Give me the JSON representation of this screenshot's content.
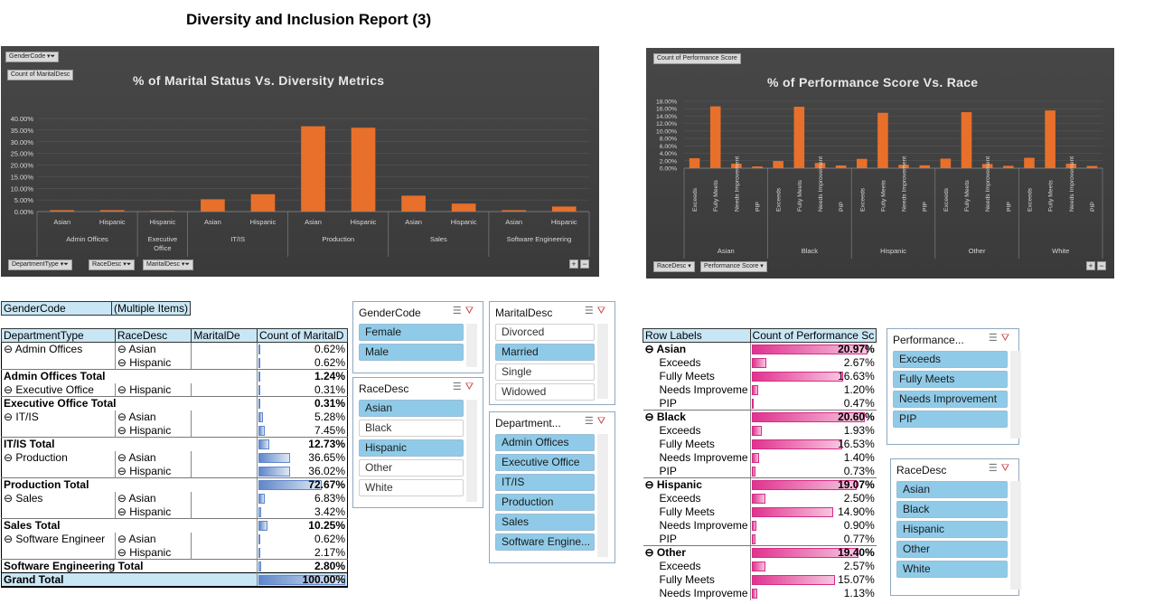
{
  "report_title": "Diversity and Inclusion Report (3)",
  "chart1": {
    "filter_gender": "GenderCode",
    "field_value": "Count of MaritalDesc",
    "title": "% of Marital Status Vs. Diversity Metrics",
    "footer_buttons": [
      "DepartmentType",
      "RaceDesc",
      "MaritalDesc"
    ],
    "y_ticks": [
      "40.00%",
      "35.00%",
      "30.00%",
      "25.00%",
      "20.00%",
      "15.00%",
      "10.00%",
      "5.00%",
      "0.00%"
    ],
    "groups": [
      "Admin Offices",
      "Executive Office",
      "IT/IS",
      "Production",
      "Sales",
      "Software Engineering"
    ]
  },
  "chart2": {
    "field_value": "Count of Performance Score",
    "title": "% of Performance Score Vs. Race",
    "footer_buttons": [
      "RaceDesc",
      "Performance Score"
    ],
    "y_ticks": [
      "18.00%",
      "16.00%",
      "14.00%",
      "12.00%",
      "10.00%",
      "8.00%",
      "6.00%",
      "4.00%",
      "2.00%",
      "0.00%"
    ],
    "groups": [
      "Asian",
      "Black",
      "Hispanic",
      "Other",
      "White"
    ],
    "sub_labels": [
      "Exceeds",
      "Fully Meets",
      "Needs Improvement",
      "PIP"
    ]
  },
  "chart_data": [
    {
      "type": "bar",
      "title": "% of Marital Status Vs. Diversity Metrics",
      "ylim": [
        0,
        40
      ],
      "categories": [
        "Admin Offices / Asian",
        "Admin Offices / Hispanic",
        "Executive Office / Hispanic",
        "IT/IS / Asian",
        "IT/IS / Hispanic",
        "Production / Asian",
        "Production / Hispanic",
        "Sales / Asian",
        "Sales / Hispanic",
        "Software Engineering / Asian",
        "Software Engineering / Hispanic"
      ],
      "labels": [
        "Asian",
        "Hispanic",
        "Hispanic",
        "Asian",
        "Hispanic",
        "Asian",
        "Hispanic",
        "Asian",
        "Hispanic",
        "Asian",
        "Hispanic"
      ],
      "values": [
        0.62,
        0.62,
        0.31,
        5.28,
        7.45,
        36.65,
        36.02,
        6.83,
        3.42,
        0.62,
        2.17
      ]
    },
    {
      "type": "bar",
      "title": "% of Performance Score Vs. Race",
      "ylim": [
        0,
        18
      ],
      "categories": [
        "Asian / Exceeds",
        "Asian / Fully Meets",
        "Asian / Needs Improvement",
        "Asian / PIP",
        "Black / Exceeds",
        "Black / Fully Meets",
        "Black / Needs Improvement",
        "Black / PIP",
        "Hispanic / Exceeds",
        "Hispanic / Fully Meets",
        "Hispanic / Needs Improvement",
        "Hispanic / PIP",
        "Other / Exceeds",
        "Other / Fully Meets",
        "Other / Needs Improvement",
        "Other / PIP",
        "White / Exceeds",
        "White / Fully Meets",
        "White / Needs Improvement",
        "White / PIP"
      ],
      "values": [
        2.67,
        16.63,
        1.2,
        0.47,
        1.93,
        16.53,
        1.4,
        0.73,
        2.5,
        14.9,
        0.9,
        0.77,
        2.57,
        15.07,
        1.13,
        0.63,
        2.8,
        15.53,
        1.2,
        0.6
      ]
    }
  ],
  "pivot1": {
    "filter_label": "GenderCode",
    "filter_value": "(Multiple Items)",
    "headers": [
      "DepartmentType",
      "RaceDesc",
      "MaritalDe",
      "Count of MaritalD"
    ],
    "rows": [
      {
        "dept": "Admin Offices",
        "race": "Asian",
        "val": "0.62%",
        "pct": 0.62,
        "type": "item"
      },
      {
        "dept": "",
        "race": "Hispanic",
        "val": "0.62%",
        "pct": 0.62,
        "type": "item"
      },
      {
        "dept": "Admin Offices Total",
        "race": "",
        "val": "1.24%",
        "pct": 1.24,
        "type": "total"
      },
      {
        "dept": "Executive Office",
        "race": "Hispanic",
        "val": "0.31%",
        "pct": 0.31,
        "type": "item"
      },
      {
        "dept": "Executive Office Total",
        "race": "",
        "val": "0.31%",
        "pct": 0.31,
        "type": "total"
      },
      {
        "dept": "IT/IS",
        "race": "Asian",
        "val": "5.28%",
        "pct": 5.28,
        "type": "item"
      },
      {
        "dept": "",
        "race": "Hispanic",
        "val": "7.45%",
        "pct": 7.45,
        "type": "item"
      },
      {
        "dept": "IT/IS Total",
        "race": "",
        "val": "12.73%",
        "pct": 12.73,
        "type": "total"
      },
      {
        "dept": "Production",
        "race": "Asian",
        "val": "36.65%",
        "pct": 36.65,
        "type": "item"
      },
      {
        "dept": "",
        "race": "Hispanic",
        "val": "36.02%",
        "pct": 36.02,
        "type": "item"
      },
      {
        "dept": "Production       Total",
        "race": "",
        "val": "72.67%",
        "pct": 72.67,
        "type": "total"
      },
      {
        "dept": "Sales",
        "race": "Asian",
        "val": "6.83%",
        "pct": 6.83,
        "type": "item"
      },
      {
        "dept": "",
        "race": "Hispanic",
        "val": "3.42%",
        "pct": 3.42,
        "type": "item"
      },
      {
        "dept": "Sales Total",
        "race": "",
        "val": "10.25%",
        "pct": 10.25,
        "type": "total"
      },
      {
        "dept": "Software Engineer",
        "race": "Asian",
        "val": "0.62%",
        "pct": 0.62,
        "type": "item"
      },
      {
        "dept": "",
        "race": "Hispanic",
        "val": "2.17%",
        "pct": 2.17,
        "type": "item"
      },
      {
        "dept": "Software Engineering Total",
        "race": "",
        "val": "2.80%",
        "pct": 2.8,
        "type": "total"
      },
      {
        "dept": "Grand Total",
        "race": "",
        "val": "100.00%",
        "pct": 100,
        "type": "grand"
      }
    ]
  },
  "pivot2": {
    "headers": [
      "Row Labels",
      "Count of Performance Sc"
    ],
    "rows": [
      {
        "label": "Asian",
        "val": "20.97%",
        "pct": 20.97,
        "type": "group"
      },
      {
        "label": "Exceeds",
        "val": "2.67%",
        "pct": 2.67,
        "type": "item"
      },
      {
        "label": "Fully Meets",
        "val": "16.63%",
        "pct": 16.63,
        "type": "item"
      },
      {
        "label": "Needs Improveme",
        "val": "1.20%",
        "pct": 1.2,
        "type": "item"
      },
      {
        "label": "PIP",
        "val": "0.47%",
        "pct": 0.47,
        "type": "item"
      },
      {
        "label": "Black",
        "val": "20.60%",
        "pct": 20.6,
        "type": "group"
      },
      {
        "label": "Exceeds",
        "val": "1.93%",
        "pct": 1.93,
        "type": "item"
      },
      {
        "label": "Fully Meets",
        "val": "16.53%",
        "pct": 16.53,
        "type": "item"
      },
      {
        "label": "Needs Improveme",
        "val": "1.40%",
        "pct": 1.4,
        "type": "item"
      },
      {
        "label": "PIP",
        "val": "0.73%",
        "pct": 0.73,
        "type": "item"
      },
      {
        "label": "Hispanic",
        "val": "19.07%",
        "pct": 19.07,
        "type": "group"
      },
      {
        "label": "Exceeds",
        "val": "2.50%",
        "pct": 2.5,
        "type": "item"
      },
      {
        "label": "Fully Meets",
        "val": "14.90%",
        "pct": 14.9,
        "type": "item"
      },
      {
        "label": "Needs Improveme",
        "val": "0.90%",
        "pct": 0.9,
        "type": "item"
      },
      {
        "label": "PIP",
        "val": "0.77%",
        "pct": 0.77,
        "type": "item"
      },
      {
        "label": "Other",
        "val": "19.40%",
        "pct": 19.4,
        "type": "group"
      },
      {
        "label": "Exceeds",
        "val": "2.57%",
        "pct": 2.57,
        "type": "item"
      },
      {
        "label": "Fully Meets",
        "val": "15.07%",
        "pct": 15.07,
        "type": "item"
      },
      {
        "label": "Needs Improveme",
        "val": "1.13%",
        "pct": 1.13,
        "type": "item"
      }
    ]
  },
  "slicers": {
    "gender": {
      "title": "GenderCode",
      "items": [
        {
          "label": "Female",
          "sel": true
        },
        {
          "label": "Male",
          "sel": true
        }
      ]
    },
    "marital": {
      "title": "MaritalDesc",
      "items": [
        {
          "label": "Divorced",
          "sel": false
        },
        {
          "label": "Married",
          "sel": true
        },
        {
          "label": "Single",
          "sel": false
        },
        {
          "label": "Widowed",
          "sel": false
        }
      ]
    },
    "race1": {
      "title": "RaceDesc",
      "items": [
        {
          "label": "Asian",
          "sel": true
        },
        {
          "label": "Black",
          "sel": false
        },
        {
          "label": "Hispanic",
          "sel": true
        },
        {
          "label": "Other",
          "sel": false
        },
        {
          "label": "White",
          "sel": false
        }
      ]
    },
    "dept": {
      "title": "Department...",
      "items": [
        {
          "label": "Admin Offices",
          "sel": true
        },
        {
          "label": "Executive Office",
          "sel": true
        },
        {
          "label": "IT/IS",
          "sel": true
        },
        {
          "label": "Production",
          "sel": true
        },
        {
          "label": "Sales",
          "sel": true
        },
        {
          "label": "Software Engine...",
          "sel": true
        }
      ]
    },
    "perf": {
      "title": "Performance...",
      "items": [
        {
          "label": "Exceeds",
          "sel": true
        },
        {
          "label": "Fully Meets",
          "sel": true
        },
        {
          "label": "Needs Improvement",
          "sel": true
        },
        {
          "label": "PIP",
          "sel": true
        }
      ]
    },
    "race2": {
      "title": "RaceDesc",
      "items": [
        {
          "label": "Asian",
          "sel": true
        },
        {
          "label": "Black",
          "sel": true
        },
        {
          "label": "Hispanic",
          "sel": true
        },
        {
          "label": "Other",
          "sel": true
        },
        {
          "label": "White",
          "sel": true
        }
      ]
    }
  },
  "colors": {
    "bar": "#e8702a",
    "chart_bg": "#404040",
    "selected": "#8fcbe8",
    "header": "#c9e6f5",
    "databar_blue": "#7a9fd4",
    "databar_pink": "#e0338f"
  }
}
